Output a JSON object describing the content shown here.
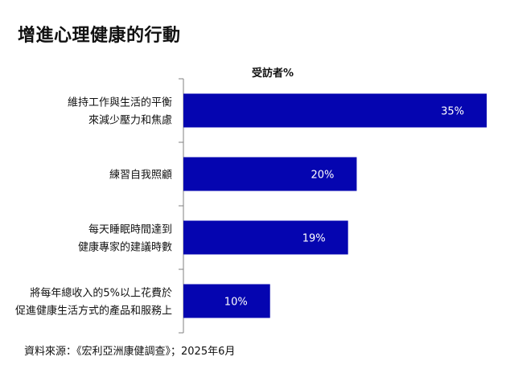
{
  "chart_data": {
    "type": "bar",
    "orientation": "horizontal",
    "title": "增進心理健康的行動",
    "unit_label": "受訪者%",
    "categories": [
      [
        "維持工作與生活的平衡",
        "來減少壓力和焦慮"
      ],
      [
        "練習自我照顧"
      ],
      [
        "每天睡眠時間達到",
        "健康專家的建議時數"
      ],
      [
        "將每年總收入的5%以上花費於",
        "促進健康生活方式的產品和服務上"
      ]
    ],
    "values": [
      35,
      20,
      19,
      10
    ],
    "value_labels": [
      "35%",
      "20%",
      "19%",
      "10%"
    ],
    "xlim": [
      0,
      35
    ],
    "bar_color": "#0505B0",
    "grid": false,
    "legend": "none"
  },
  "source": "資料來源：《宏利亞洲康健調查》；2025年6月"
}
